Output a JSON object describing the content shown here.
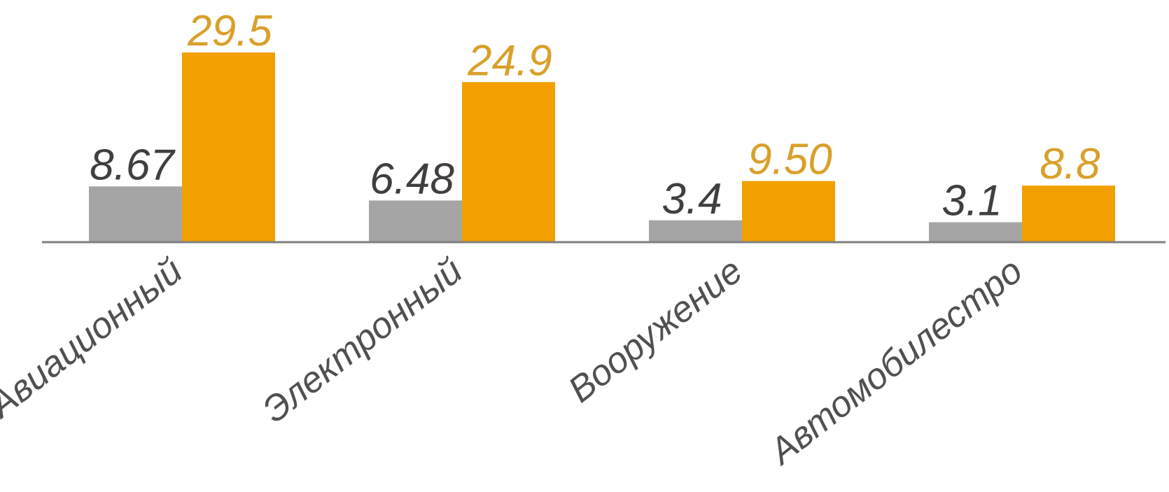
{
  "chart_data": {
    "type": "bar",
    "categories": [
      "Авиационный",
      "Электронный",
      "Вооружение",
      "Автомобилестро"
    ],
    "series": [
      {
        "values": [
          8.67,
          6.48,
          3.4,
          3.1
        ],
        "value_labels": [
          "8.67",
          "6.48",
          "3.4",
          "3.1"
        ],
        "color": "#a5a5a5",
        "label_color": "#3f3f3f"
      },
      {
        "values": [
          29.5,
          24.9,
          9.5,
          8.8
        ],
        "value_labels": [
          "29.5",
          "24.9",
          "9.50",
          "8.8"
        ],
        "color": "#f2a000",
        "label_color": "#d9a02a"
      }
    ],
    "title": "",
    "xlabel": "",
    "ylabel": "",
    "ylim": [
      0,
      29.5
    ],
    "grid": false,
    "legend": "none",
    "axis_color": "#7f7f7f"
  }
}
